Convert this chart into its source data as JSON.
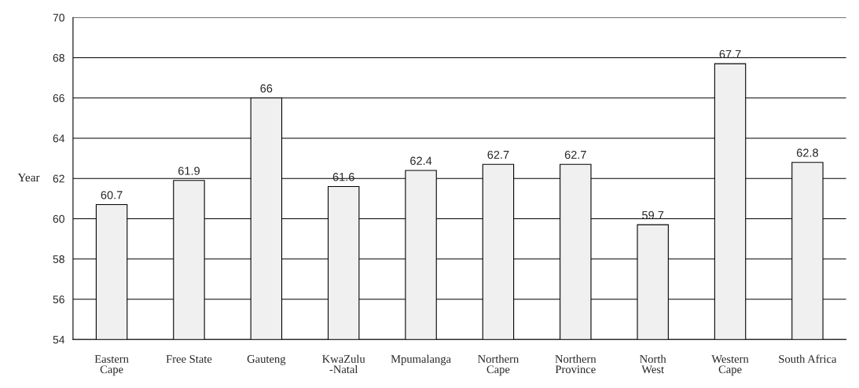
{
  "chart_data": {
    "type": "bar",
    "ylabel": "Year",
    "categories": [
      "Eastern\nCape",
      "Free State",
      "Gauteng",
      "KwaZulu\n-Natal",
      "Mpumalanga",
      "Northern\nCape",
      "Northern\nProvince",
      "North\nWest",
      "Western\nCape",
      "South Africa"
    ],
    "values": [
      60.7,
      61.9,
      66,
      61.6,
      62.4,
      62.7,
      62.7,
      59.7,
      67.7,
      62.8
    ],
    "color": "#f0f0f0",
    "ylim": [
      54,
      70
    ],
    "yticks": [
      54,
      56,
      58,
      60,
      62,
      64,
      66,
      68,
      70
    ],
    "grid": "y",
    "data_labels": true
  }
}
